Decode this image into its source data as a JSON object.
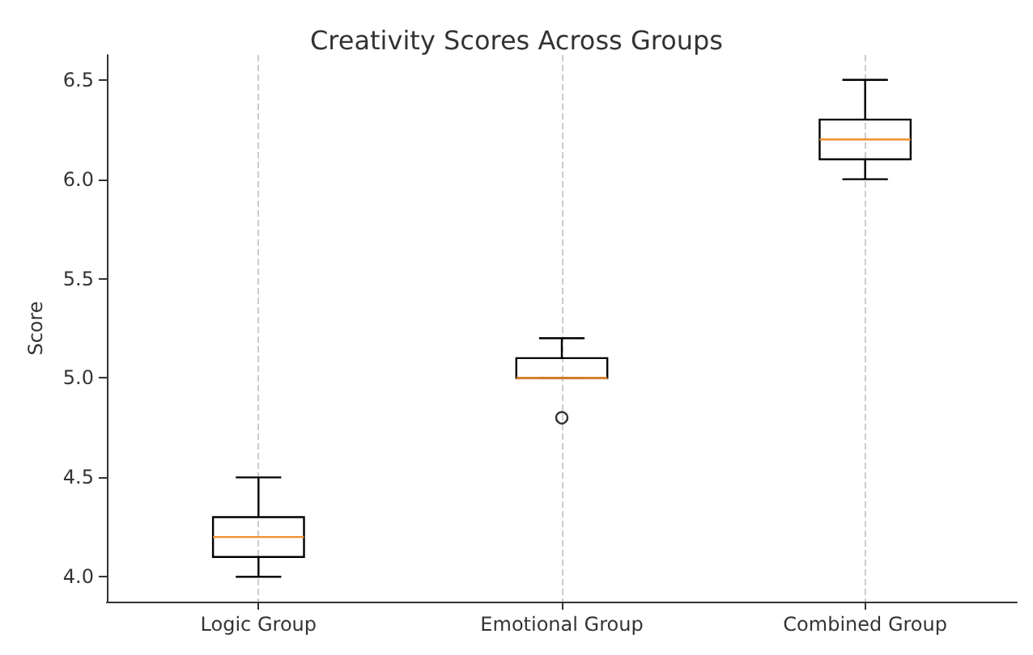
{
  "chart_data": {
    "type": "box",
    "title": "Creativity Scores Across Groups",
    "ylabel": "Score",
    "categories": [
      "Logic Group",
      "Emotional Group",
      "Combined Group"
    ],
    "series": [
      {
        "color": "#000000",
        "boxes": [
          {
            "low": 4.0,
            "q1": 4.1,
            "median": 4.2,
            "q3": 4.3,
            "high": 4.5
          },
          {
            "low": 5.0,
            "q1": 5.0,
            "median": 5.0,
            "q3": 5.1,
            "high": 5.2,
            "outliers": [
              4.8
            ]
          },
          {
            "low": 6.0,
            "q1": 6.1,
            "median": 6.2,
            "q3": 6.3,
            "high": 6.5
          }
        ]
      }
    ],
    "ylim": [
      3.875,
      6.625
    ],
    "yticks": [
      {
        "value": 4,
        "label": "4.0"
      },
      4.5,
      {
        "value": 5,
        "label": "5.0"
      },
      5.5,
      {
        "value": 6,
        "label": "6.0"
      },
      6.5
    ],
    "grid": "x"
  }
}
